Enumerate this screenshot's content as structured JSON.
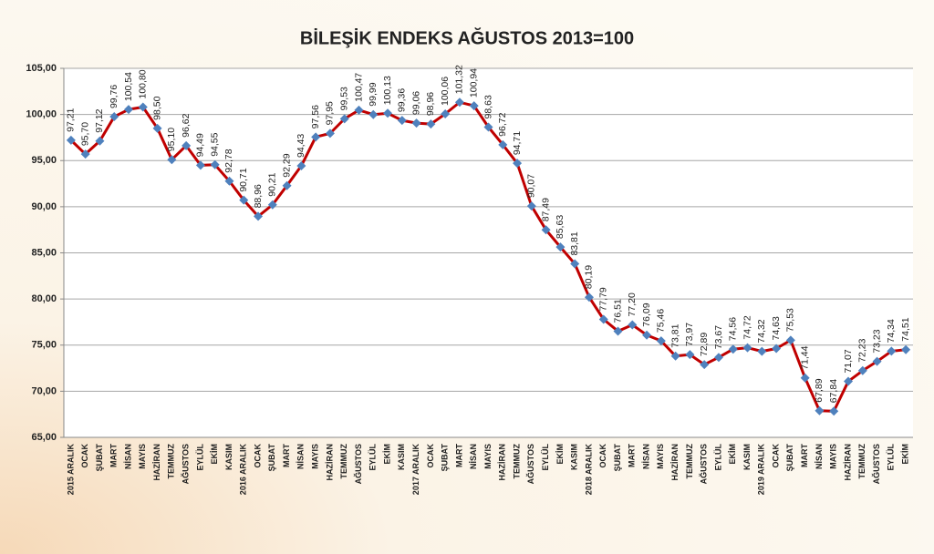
{
  "chart_data": {
    "type": "line",
    "title": "BİLEŞİK ENDEKS AĞUSTOS 2013=100",
    "categories": [
      "2015 ARALIK",
      "OCAK",
      "ŞUBAT",
      "MART",
      "NİSAN",
      "MAYIS",
      "HAZİRAN",
      "TEMMUZ",
      "AĞUSTOS",
      "EYLÜL",
      "EKİM",
      "KASIM",
      "2016 ARALIK",
      "OCAK",
      "ŞUBAT",
      "MART",
      "NİSAN",
      "MAYIS",
      "HAZİRAN",
      "TEMMUZ",
      "AĞUSTOS",
      "EYLÜL",
      "EKİM",
      "KASIM",
      "2017 ARALIK",
      "OCAK",
      "ŞUBAT",
      "MART",
      "NİSAN",
      "MAYIS",
      "HAZİRAN",
      "TEMMUZ",
      "AĞUSTOS",
      "EYLÜL",
      "EKİM",
      "KASIM",
      "2018 ARALIK",
      "OCAK",
      "ŞUBAT",
      "MART",
      "NİSAN",
      "MAYIS",
      "HAZİRAN",
      "TEMMUZ",
      "AĞUSTOS",
      "EYLÜL",
      "EKİM",
      "KASIM",
      "2019 ARALIK",
      "OCAK",
      "ŞUBAT",
      "MART",
      "NİSAN",
      "MAYIS",
      "HAZİRAN",
      "TEMMUZ",
      "AĞUSTOS",
      "EYLÜL",
      "EKİM"
    ],
    "values": [
      97.21,
      95.7,
      97.12,
      99.76,
      100.54,
      100.8,
      98.5,
      95.1,
      96.62,
      94.49,
      94.55,
      92.78,
      90.71,
      88.96,
      90.21,
      92.29,
      94.43,
      97.56,
      97.95,
      99.53,
      100.47,
      99.99,
      100.13,
      99.36,
      99.06,
      98.96,
      100.06,
      101.32,
      100.94,
      98.63,
      96.72,
      94.71,
      90.07,
      87.49,
      85.63,
      83.81,
      80.19,
      77.79,
      76.51,
      77.2,
      76.09,
      75.46,
      73.81,
      73.97,
      72.89,
      73.67,
      74.56,
      74.72,
      74.32,
      74.63,
      75.53,
      71.44,
      67.89,
      67.84,
      71.07,
      72.23,
      73.23,
      74.34,
      74.51
    ],
    "value_labels": [
      "97,21",
      "95,70",
      "97,12",
      "99,76",
      "100,54",
      "100,80",
      "98,50",
      "95,10",
      "96,62",
      "94,49",
      "94,55",
      "92,78",
      "90,71",
      "88,96",
      "90,21",
      "92,29",
      "94,43",
      "97,56",
      "97,95",
      "99,53",
      "100,47",
      "99,99",
      "100,13",
      "99,36",
      "99,06",
      "98,96",
      "100,06",
      "101,32",
      "100,94",
      "98,63",
      "96,72",
      "94,71",
      "90,07",
      "87,49",
      "85,63",
      "83,81",
      "80,19",
      "77,79",
      "76,51",
      "77,20",
      "76,09",
      "75,46",
      "73,81",
      "73,97",
      "72,89",
      "73,67",
      "74,56",
      "74,72",
      "74,32",
      "74,63",
      "75,53",
      "71,44",
      "67,89",
      "67,84",
      "71,07",
      "72,23",
      "73,23",
      "74,34",
      "74,51"
    ],
    "color": "#c00000",
    "marker_color": "#4f81bd",
    "ylim": [
      65,
      105
    ],
    "yticks": [
      {
        "value": 65,
        "label": "65,00"
      },
      {
        "value": 70,
        "label": "70,00"
      },
      {
        "value": 75,
        "label": "75,00"
      },
      {
        "value": 80,
        "label": "80,00"
      },
      {
        "value": 85,
        "label": "85,00"
      },
      {
        "value": 90,
        "label": "90,00"
      },
      {
        "value": 95,
        "label": "95,00"
      },
      {
        "value": 100,
        "label": "100,00"
      },
      {
        "value": 105,
        "label": "105,00"
      }
    ],
    "grid": true
  }
}
